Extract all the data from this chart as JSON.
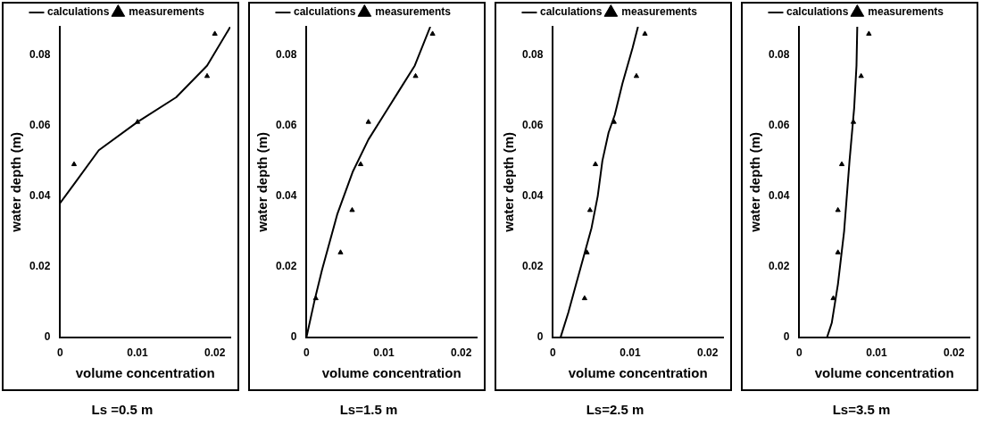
{
  "chart_data": [
    {
      "type": "line",
      "title": "Ls =0.5 m",
      "xlabel": "volume concentration",
      "ylabel": "water depth (m)",
      "xlim": [
        0,
        0.022
      ],
      "ylim": [
        0,
        0.088
      ],
      "xticks": [
        0,
        0.01,
        0.02
      ],
      "yticks": [
        0,
        0.02,
        0.04,
        0.06,
        0.08
      ],
      "grid": false,
      "legend": "top",
      "series": [
        {
          "name": "calculations",
          "type": "line",
          "color": "#000000",
          "marker": "none",
          "line_style": "solid",
          "x": [
            0,
            0.002,
            0.005,
            0.01,
            0.015,
            0.019,
            0.022
          ],
          "values": [
            0.038,
            0.044,
            0.053,
            0.061,
            0.068,
            0.077,
            0.088
          ]
        },
        {
          "name": "measurements",
          "type": "scatter",
          "color": "#000000",
          "marker": "triangle",
          "x": [
            0.0018,
            0.01,
            0.019,
            0.02
          ],
          "values": [
            0.049,
            0.061,
            0.074,
            0.086
          ]
        }
      ]
    },
    {
      "type": "line",
      "title": "Ls=1.5 m",
      "xlabel": "volume concentration",
      "ylabel": "water depth (m)",
      "xlim": [
        0,
        0.022
      ],
      "ylim": [
        0,
        0.088
      ],
      "xticks": [
        0,
        0.01,
        0.02
      ],
      "yticks": [
        0,
        0.02,
        0.04,
        0.06,
        0.08
      ],
      "grid": false,
      "legend": "top",
      "series": [
        {
          "name": "calculations",
          "type": "line",
          "color": "#000000",
          "marker": "none",
          "line_style": "solid",
          "x": [
            0,
            0.001,
            0.002,
            0.004,
            0.006,
            0.008,
            0.01,
            0.012,
            0.014,
            0.016
          ],
          "values": [
            0,
            0.01,
            0.019,
            0.035,
            0.047,
            0.056,
            0.063,
            0.07,
            0.077,
            0.088
          ]
        },
        {
          "name": "measurements",
          "type": "scatter",
          "color": "#000000",
          "marker": "triangle",
          "x": [
            0.0012,
            0.0044,
            0.0059,
            0.007,
            0.008,
            0.0141,
            0.0163
          ],
          "values": [
            0.011,
            0.024,
            0.036,
            0.049,
            0.061,
            0.074,
            0.086
          ]
        }
      ]
    },
    {
      "type": "line",
      "title": "Ls=2.5  m",
      "xlabel": "volume concentration",
      "ylabel": "water depth (m)",
      "xlim": [
        0,
        0.022
      ],
      "ylim": [
        0,
        0.088
      ],
      "xticks": [
        0,
        0.01,
        0.02
      ],
      "yticks": [
        0,
        0.02,
        0.04,
        0.06,
        0.08
      ],
      "grid": false,
      "legend": "top",
      "series": [
        {
          "name": "calculations",
          "type": "line",
          "color": "#000000",
          "marker": "none",
          "line_style": "solid",
          "x": [
            0.001,
            0.002,
            0.003,
            0.004,
            0.005,
            0.0058,
            0.0064,
            0.0072,
            0.008,
            0.009,
            0.0103,
            0.011
          ],
          "values": [
            0,
            0.007,
            0.015,
            0.023,
            0.031,
            0.04,
            0.05,
            0.058,
            0.063,
            0.072,
            0.082,
            0.088
          ]
        },
        {
          "name": "measurements",
          "type": "scatter",
          "color": "#000000",
          "marker": "triangle",
          "x": [
            0.0041,
            0.0044,
            0.0048,
            0.0055,
            0.0079,
            0.0108,
            0.0119
          ],
          "values": [
            0.011,
            0.024,
            0.036,
            0.049,
            0.061,
            0.074,
            0.086
          ]
        }
      ]
    },
    {
      "type": "line",
      "title": "Ls=3.5 m",
      "xlabel": "volume concentration",
      "ylabel": "water depth (m)",
      "xlim": [
        0,
        0.022
      ],
      "ylim": [
        0,
        0.088
      ],
      "xticks": [
        0,
        0.01,
        0.02
      ],
      "yticks": [
        0,
        0.02,
        0.04,
        0.06,
        0.08
      ],
      "grid": false,
      "legend": "top",
      "series": [
        {
          "name": "calculations",
          "type": "line",
          "color": "#000000",
          "marker": "none",
          "line_style": "solid",
          "x": [
            0.0036,
            0.0042,
            0.005,
            0.0058,
            0.0065,
            0.0071,
            0.0074,
            0.0075
          ],
          "values": [
            0,
            0.004,
            0.015,
            0.03,
            0.05,
            0.065,
            0.077,
            0.088
          ]
        },
        {
          "name": "measurements",
          "type": "scatter",
          "color": "#000000",
          "marker": "triangle",
          "x": [
            0.0044,
            0.005,
            0.005,
            0.0055,
            0.007,
            0.008,
            0.009
          ],
          "values": [
            0.011,
            0.024,
            0.036,
            0.049,
            0.061,
            0.074,
            0.086
          ]
        }
      ]
    }
  ]
}
